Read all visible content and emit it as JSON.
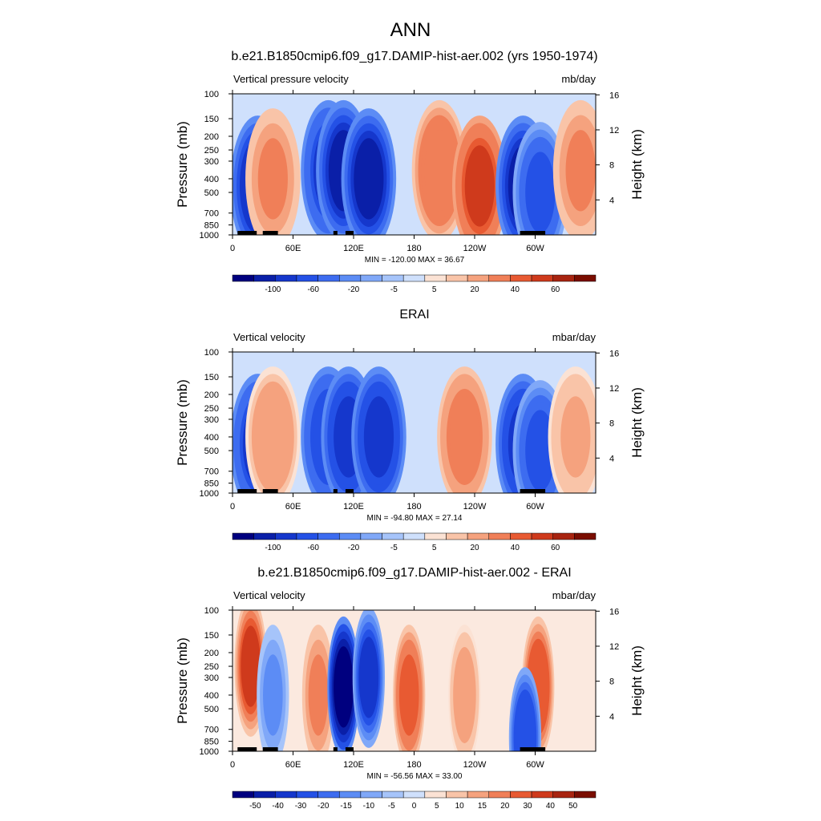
{
  "main_title": "ANN",
  "colors": {
    "panel_palette": [
      "#00007f",
      "#0a1fa8",
      "#1537cc",
      "#2451e6",
      "#3d6cf0",
      "#5c8cf5",
      "#80a8f8",
      "#a6c4fa",
      "#cfe0fc",
      "#fbe2d4",
      "#f9c4a8",
      "#f5a27e",
      "#f07f58",
      "#e85a32",
      "#cf3a1c",
      "#a82410",
      "#7a0d00"
    ],
    "diff_palette": [
      "#00007f",
      "#0a1fa8",
      "#1537cc",
      "#2451e6",
      "#3d6cf0",
      "#5c8cf5",
      "#80a8f8",
      "#a6c4fa",
      "#cfe0fc",
      "#fbe2d4",
      "#f9c4a8",
      "#f5a27e",
      "#f07f58",
      "#e85a32",
      "#cf3a1c",
      "#a82410",
      "#7a0d00"
    ],
    "topography": "#000000"
  },
  "chart_data": [
    {
      "type": "heatmap",
      "title": "b.e21.B1850cmip6.f09_g17.DAMIP-hist-aer.002 (yrs 1950-1974)",
      "left_label": "Vertical pressure velocity",
      "units": "mb/day",
      "ylabel": "Pressure (mb)",
      "ylabel_right": "Height (km)",
      "x_ticks": [
        "0",
        "60E",
        "120E",
        "180",
        "120W",
        "60W"
      ],
      "y_ticks": [
        "100",
        "150",
        "200",
        "250",
        "300",
        "400",
        "500",
        "700",
        "850",
        "1000"
      ],
      "y_ticks_right": [
        "16",
        "12",
        "8",
        "4"
      ],
      "stats": "MIN = -120.00  MAX =  36.67",
      "min": -120.0,
      "max": 36.67,
      "colorbar_labels": [
        "-100",
        "-60",
        "-20",
        "-5",
        "5",
        "20",
        "40",
        "60"
      ],
      "fields": [
        {
          "lon": 25,
          "p": 450,
          "v": -75
        },
        {
          "lon": 40,
          "p": 400,
          "v": 12
        },
        {
          "lon": 95,
          "p": 350,
          "v": -60
        },
        {
          "lon": 110,
          "p": 350,
          "v": -90
        },
        {
          "lon": 135,
          "p": 400,
          "v": -85
        },
        {
          "lon": 205,
          "p": 350,
          "v": 18
        },
        {
          "lon": 245,
          "p": 450,
          "v": 32
        },
        {
          "lon": 288,
          "p": 450,
          "v": -80
        },
        {
          "lon": 305,
          "p": 500,
          "v": -45
        },
        {
          "lon": 345,
          "p": 350,
          "v": 12
        }
      ]
    },
    {
      "type": "heatmap",
      "title": "ERAI",
      "left_label": "Vertical velocity",
      "units": "mbar/day",
      "ylabel": "Pressure (mb)",
      "ylabel_right": "Height (km)",
      "x_ticks": [
        "0",
        "60E",
        "120E",
        "180",
        "120W",
        "60W"
      ],
      "y_ticks": [
        "100",
        "150",
        "200",
        "250",
        "300",
        "400",
        "500",
        "700",
        "850",
        "1000"
      ],
      "y_ticks_right": [
        "16",
        "12",
        "8",
        "4"
      ],
      "stats": "MIN = -94.80  MAX =  27.14",
      "min": -94.8,
      "max": 27.14,
      "colorbar_labels": [
        "-100",
        "-60",
        "-20",
        "-5",
        "5",
        "20",
        "40",
        "60"
      ],
      "fields": [
        {
          "lon": 25,
          "p": 450,
          "v": -65
        },
        {
          "lon": 40,
          "p": 400,
          "v": 10
        },
        {
          "lon": 95,
          "p": 400,
          "v": -55
        },
        {
          "lon": 115,
          "p": 400,
          "v": -70
        },
        {
          "lon": 145,
          "p": 400,
          "v": -70
        },
        {
          "lon": 230,
          "p": 400,
          "v": 15
        },
        {
          "lon": 288,
          "p": 450,
          "v": -70
        },
        {
          "lon": 305,
          "p": 500,
          "v": -40
        },
        {
          "lon": 340,
          "p": 400,
          "v": 6
        }
      ]
    },
    {
      "type": "heatmap",
      "title": "b.e21.B1850cmip6.f09_g17.DAMIP-hist-aer.002 - ERAI",
      "left_label": "Vertical velocity",
      "units": "mbar/day",
      "ylabel": "Pressure (mb)",
      "ylabel_right": "Height (km)",
      "x_ticks": [
        "0",
        "60E",
        "120E",
        "180",
        "120W",
        "60W"
      ],
      "y_ticks": [
        "100",
        "150",
        "200",
        "250",
        "300",
        "400",
        "500",
        "700",
        "850",
        "1000"
      ],
      "y_ticks_right": [
        "16",
        "12",
        "8",
        "4"
      ],
      "stats": "MIN = -56.56  MAX =  33.00",
      "min": -56.56,
      "max": 33.0,
      "colorbar_labels": [
        "-50",
        "-40",
        "-30",
        "-20",
        "-15",
        "-10",
        "-5",
        "0",
        "5",
        "10",
        "15",
        "20",
        "30",
        "40",
        "50"
      ],
      "fields": [
        {
          "lon": 18,
          "p": 250,
          "v": 22
        },
        {
          "lon": 40,
          "p": 400,
          "v": -10
        },
        {
          "lon": 85,
          "p": 400,
          "v": 12
        },
        {
          "lon": 110,
          "p": 350,
          "v": -50
        },
        {
          "lon": 135,
          "p": 300,
          "v": -30
        },
        {
          "lon": 175,
          "p": 400,
          "v": 18
        },
        {
          "lon": 230,
          "p": 400,
          "v": 8
        },
        {
          "lon": 303,
          "p": 350,
          "v": 20
        },
        {
          "lon": 290,
          "p": 800,
          "v": -25
        }
      ]
    }
  ]
}
